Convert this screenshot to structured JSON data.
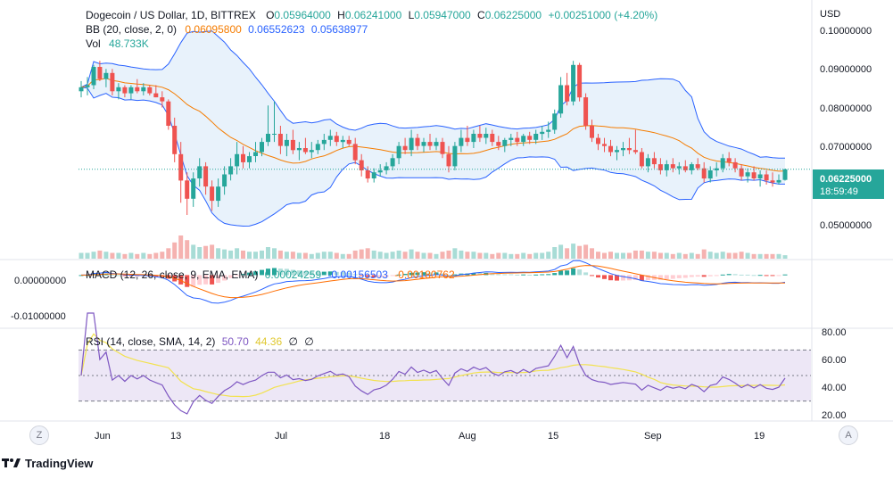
{
  "colors": {
    "up": "#26a69a",
    "down": "#ef5350",
    "vol_up": "#a8dcd6",
    "vol_down": "#f5b2b0",
    "bb_basis": "#f57c00",
    "bb_band": "#2962ff",
    "bb_fill": "#e8f2fb",
    "macd_line": "#2962ff",
    "signal_line": "#ff6d00",
    "rsi_line": "#7e57c2",
    "rsi_ma": "#f2e24f",
    "rsi_band": "#ede7f6",
    "price_label_bg": "#26a69a",
    "text_dark": "#131722",
    "text_up": "#26a69a",
    "text_orange": "#f57c00",
    "text_blue": "#2962ff"
  },
  "legend": {
    "symbol_label": "Dogecoin / US Dollar, 1D, BITTREX",
    "o_key": "O",
    "o_val": "0.05964000",
    "h_key": "H",
    "h_val": "0.06241000",
    "l_key": "L",
    "l_val": "0.05947000",
    "c_key": "C",
    "c_val": "0.06225000",
    "change": "+0.00251000 (+4.20%)",
    "bb_label": "BB (20, close, 2, 0)",
    "bb_basis": "0.06095800",
    "bb_upper": "0.06552623",
    "bb_lower": "0.05638977",
    "vol_label": "Vol",
    "vol_value": "48.733K",
    "macd_label": "MACD (12, 26, close, 9, EMA, EMA)",
    "macd_hist": "0.00024259",
    "macd_line": "-0.00156503",
    "macd_signal": "-0.00180762",
    "rsi_label": "RSI (14, close, SMA, 14, 2)",
    "rsi_value": "50.70",
    "rsi_ma": "44.36",
    "rsi_x1": "∅",
    "rsi_x2": "∅"
  },
  "price_axis": {
    "currency": "USD",
    "ticks": [
      "0.10000000",
      "0.09000000",
      "0.08000000",
      "0.07000000",
      "0.05000000"
    ],
    "last_price": "0.06225000",
    "countdown": "18:59:49"
  },
  "macd_axis": {
    "ticks": [
      "0.00000000",
      "-0.01000000"
    ]
  },
  "rsi_axis": {
    "ticks": [
      "80.00",
      "60.00",
      "40.00",
      "20.00"
    ]
  },
  "time_axis": {
    "labels": [
      "Jun",
      "13",
      "Jul",
      "18",
      "Aug",
      "15",
      "Sep",
      "19"
    ]
  },
  "buttons": {
    "zoom": "Z",
    "auto": "A"
  },
  "branding": {
    "name": "TradingView"
  },
  "chart_data": {
    "type": "candlestick",
    "title": "Dogecoin / US Dollar, 1D, BITTREX",
    "y_range": [
      0.04,
      0.104
    ],
    "candles": [
      {
        "o": 0.0815,
        "h": 0.084,
        "l": 0.08,
        "c": 0.0825
      },
      {
        "o": 0.0825,
        "h": 0.085,
        "l": 0.0805,
        "c": 0.083
      },
      {
        "o": 0.083,
        "h": 0.088,
        "l": 0.082,
        "c": 0.0875
      },
      {
        "o": 0.0875,
        "h": 0.089,
        "l": 0.084,
        "c": 0.0845
      },
      {
        "o": 0.0845,
        "h": 0.087,
        "l": 0.0825,
        "c": 0.086
      },
      {
        "o": 0.086,
        "h": 0.087,
        "l": 0.0805,
        "c": 0.0815
      },
      {
        "o": 0.0815,
        "h": 0.0835,
        "l": 0.0795,
        "c": 0.0825
      },
      {
        "o": 0.0825,
        "h": 0.083,
        "l": 0.08,
        "c": 0.081
      },
      {
        "o": 0.081,
        "h": 0.083,
        "l": 0.0795,
        "c": 0.0825
      },
      {
        "o": 0.0825,
        "h": 0.0845,
        "l": 0.081,
        "c": 0.0815
      },
      {
        "o": 0.0815,
        "h": 0.0835,
        "l": 0.0805,
        "c": 0.0825
      },
      {
        "o": 0.0825,
        "h": 0.083,
        "l": 0.0805,
        "c": 0.081
      },
      {
        "o": 0.081,
        "h": 0.083,
        "l": 0.08,
        "c": 0.08
      },
      {
        "o": 0.08,
        "h": 0.0815,
        "l": 0.0775,
        "c": 0.079
      },
      {
        "o": 0.079,
        "h": 0.0795,
        "l": 0.072,
        "c": 0.073
      },
      {
        "o": 0.073,
        "h": 0.075,
        "l": 0.064,
        "c": 0.066
      },
      {
        "o": 0.066,
        "h": 0.069,
        "l": 0.054,
        "c": 0.0595
      },
      {
        "o": 0.0595,
        "h": 0.0615,
        "l": 0.051,
        "c": 0.055
      },
      {
        "o": 0.055,
        "h": 0.0615,
        "l": 0.053,
        "c": 0.06
      },
      {
        "o": 0.06,
        "h": 0.065,
        "l": 0.058,
        "c": 0.063
      },
      {
        "o": 0.063,
        "h": 0.064,
        "l": 0.056,
        "c": 0.058
      },
      {
        "o": 0.058,
        "h": 0.0595,
        "l": 0.052,
        "c": 0.0545
      },
      {
        "o": 0.0545,
        "h": 0.06,
        "l": 0.053,
        "c": 0.058
      },
      {
        "o": 0.058,
        "h": 0.063,
        "l": 0.056,
        "c": 0.061
      },
      {
        "o": 0.061,
        "h": 0.065,
        "l": 0.0595,
        "c": 0.063
      },
      {
        "o": 0.063,
        "h": 0.069,
        "l": 0.061,
        "c": 0.066
      },
      {
        "o": 0.066,
        "h": 0.068,
        "l": 0.0625,
        "c": 0.064
      },
      {
        "o": 0.064,
        "h": 0.0665,
        "l": 0.0625,
        "c": 0.0655
      },
      {
        "o": 0.0655,
        "h": 0.069,
        "l": 0.064,
        "c": 0.0665
      },
      {
        "o": 0.0665,
        "h": 0.07,
        "l": 0.0655,
        "c": 0.069
      },
      {
        "o": 0.069,
        "h": 0.078,
        "l": 0.068,
        "c": 0.071
      },
      {
        "o": 0.071,
        "h": 0.079,
        "l": 0.069,
        "c": 0.071
      },
      {
        "o": 0.071,
        "h": 0.073,
        "l": 0.066,
        "c": 0.068
      },
      {
        "o": 0.068,
        "h": 0.071,
        "l": 0.0655,
        "c": 0.0695
      },
      {
        "o": 0.0695,
        "h": 0.072,
        "l": 0.066,
        "c": 0.067
      },
      {
        "o": 0.067,
        "h": 0.069,
        "l": 0.0645,
        "c": 0.0675
      },
      {
        "o": 0.0675,
        "h": 0.07,
        "l": 0.066,
        "c": 0.0665
      },
      {
        "o": 0.0665,
        "h": 0.069,
        "l": 0.065,
        "c": 0.067
      },
      {
        "o": 0.067,
        "h": 0.0695,
        "l": 0.066,
        "c": 0.0685
      },
      {
        "o": 0.0685,
        "h": 0.071,
        "l": 0.067,
        "c": 0.0695
      },
      {
        "o": 0.0695,
        "h": 0.072,
        "l": 0.068,
        "c": 0.0705
      },
      {
        "o": 0.0705,
        "h": 0.0715,
        "l": 0.068,
        "c": 0.069
      },
      {
        "o": 0.069,
        "h": 0.0705,
        "l": 0.0675,
        "c": 0.0695
      },
      {
        "o": 0.0695,
        "h": 0.0705,
        "l": 0.068,
        "c": 0.0685
      },
      {
        "o": 0.0685,
        "h": 0.07,
        "l": 0.0635,
        "c": 0.0645
      },
      {
        "o": 0.0645,
        "h": 0.066,
        "l": 0.0605,
        "c": 0.062
      },
      {
        "o": 0.062,
        "h": 0.063,
        "l": 0.059,
        "c": 0.06
      },
      {
        "o": 0.06,
        "h": 0.0625,
        "l": 0.059,
        "c": 0.0615
      },
      {
        "o": 0.0615,
        "h": 0.0635,
        "l": 0.0605,
        "c": 0.062
      },
      {
        "o": 0.062,
        "h": 0.064,
        "l": 0.061,
        "c": 0.063
      },
      {
        "o": 0.063,
        "h": 0.066,
        "l": 0.062,
        "c": 0.065
      },
      {
        "o": 0.065,
        "h": 0.069,
        "l": 0.0635,
        "c": 0.068
      },
      {
        "o": 0.068,
        "h": 0.07,
        "l": 0.066,
        "c": 0.067
      },
      {
        "o": 0.067,
        "h": 0.072,
        "l": 0.0655,
        "c": 0.07
      },
      {
        "o": 0.07,
        "h": 0.071,
        "l": 0.067,
        "c": 0.068
      },
      {
        "o": 0.068,
        "h": 0.07,
        "l": 0.0665,
        "c": 0.069
      },
      {
        "o": 0.069,
        "h": 0.071,
        "l": 0.067,
        "c": 0.068
      },
      {
        "o": 0.068,
        "h": 0.07,
        "l": 0.067,
        "c": 0.069
      },
      {
        "o": 0.069,
        "h": 0.07,
        "l": 0.065,
        "c": 0.066
      },
      {
        "o": 0.066,
        "h": 0.068,
        "l": 0.0615,
        "c": 0.063
      },
      {
        "o": 0.063,
        "h": 0.069,
        "l": 0.062,
        "c": 0.068
      },
      {
        "o": 0.068,
        "h": 0.072,
        "l": 0.0665,
        "c": 0.07
      },
      {
        "o": 0.07,
        "h": 0.073,
        "l": 0.068,
        "c": 0.069
      },
      {
        "o": 0.069,
        "h": 0.072,
        "l": 0.0675,
        "c": 0.071
      },
      {
        "o": 0.071,
        "h": 0.073,
        "l": 0.069,
        "c": 0.07
      },
      {
        "o": 0.07,
        "h": 0.0725,
        "l": 0.0685,
        "c": 0.071
      },
      {
        "o": 0.071,
        "h": 0.072,
        "l": 0.068,
        "c": 0.069
      },
      {
        "o": 0.069,
        "h": 0.0705,
        "l": 0.067,
        "c": 0.068
      },
      {
        "o": 0.068,
        "h": 0.07,
        "l": 0.0665,
        "c": 0.0695
      },
      {
        "o": 0.0695,
        "h": 0.071,
        "l": 0.068,
        "c": 0.07
      },
      {
        "o": 0.07,
        "h": 0.0715,
        "l": 0.068,
        "c": 0.069
      },
      {
        "o": 0.069,
        "h": 0.071,
        "l": 0.068,
        "c": 0.0705
      },
      {
        "o": 0.0705,
        "h": 0.0715,
        "l": 0.0685,
        "c": 0.0695
      },
      {
        "o": 0.0695,
        "h": 0.072,
        "l": 0.0685,
        "c": 0.071
      },
      {
        "o": 0.071,
        "h": 0.073,
        "l": 0.0695,
        "c": 0.0715
      },
      {
        "o": 0.0715,
        "h": 0.074,
        "l": 0.07,
        "c": 0.072
      },
      {
        "o": 0.072,
        "h": 0.077,
        "l": 0.071,
        "c": 0.076
      },
      {
        "o": 0.076,
        "h": 0.085,
        "l": 0.075,
        "c": 0.083
      },
      {
        "o": 0.083,
        "h": 0.086,
        "l": 0.078,
        "c": 0.079
      },
      {
        "o": 0.079,
        "h": 0.089,
        "l": 0.078,
        "c": 0.088
      },
      {
        "o": 0.088,
        "h": 0.0885,
        "l": 0.079,
        "c": 0.08
      },
      {
        "o": 0.08,
        "h": 0.081,
        "l": 0.072,
        "c": 0.073
      },
      {
        "o": 0.073,
        "h": 0.0745,
        "l": 0.069,
        "c": 0.07
      },
      {
        "o": 0.07,
        "h": 0.071,
        "l": 0.067,
        "c": 0.0685
      },
      {
        "o": 0.0685,
        "h": 0.07,
        "l": 0.0665,
        "c": 0.068
      },
      {
        "o": 0.068,
        "h": 0.0695,
        "l": 0.0655,
        "c": 0.0665
      },
      {
        "o": 0.0665,
        "h": 0.068,
        "l": 0.0645,
        "c": 0.067
      },
      {
        "o": 0.067,
        "h": 0.069,
        "l": 0.0655,
        "c": 0.0675
      },
      {
        "o": 0.0675,
        "h": 0.07,
        "l": 0.066,
        "c": 0.067
      },
      {
        "o": 0.067,
        "h": 0.072,
        "l": 0.066,
        "c": 0.0665
      },
      {
        "o": 0.0665,
        "h": 0.0675,
        "l": 0.0625,
        "c": 0.063
      },
      {
        "o": 0.063,
        "h": 0.066,
        "l": 0.0615,
        "c": 0.065
      },
      {
        "o": 0.065,
        "h": 0.0665,
        "l": 0.0625,
        "c": 0.0635
      },
      {
        "o": 0.0635,
        "h": 0.065,
        "l": 0.061,
        "c": 0.062
      },
      {
        "o": 0.062,
        "h": 0.0645,
        "l": 0.0605,
        "c": 0.0635
      },
      {
        "o": 0.0635,
        "h": 0.065,
        "l": 0.0615,
        "c": 0.0625
      },
      {
        "o": 0.0625,
        "h": 0.064,
        "l": 0.061,
        "c": 0.063
      },
      {
        "o": 0.063,
        "h": 0.0645,
        "l": 0.0615,
        "c": 0.062
      },
      {
        "o": 0.062,
        "h": 0.064,
        "l": 0.061,
        "c": 0.0635
      },
      {
        "o": 0.0635,
        "h": 0.065,
        "l": 0.062,
        "c": 0.0625
      },
      {
        "o": 0.0625,
        "h": 0.064,
        "l": 0.059,
        "c": 0.06
      },
      {
        "o": 0.06,
        "h": 0.063,
        "l": 0.059,
        "c": 0.062
      },
      {
        "o": 0.062,
        "h": 0.064,
        "l": 0.0605,
        "c": 0.0625
      },
      {
        "o": 0.0625,
        "h": 0.066,
        "l": 0.0615,
        "c": 0.065
      },
      {
        "o": 0.065,
        "h": 0.0665,
        "l": 0.063,
        "c": 0.064
      },
      {
        "o": 0.064,
        "h": 0.065,
        "l": 0.0615,
        "c": 0.0625
      },
      {
        "o": 0.0625,
        "h": 0.0635,
        "l": 0.0595,
        "c": 0.0605
      },
      {
        "o": 0.0605,
        "h": 0.0625,
        "l": 0.059,
        "c": 0.0615
      },
      {
        "o": 0.0615,
        "h": 0.063,
        "l": 0.0595,
        "c": 0.06
      },
      {
        "o": 0.06,
        "h": 0.062,
        "l": 0.058,
        "c": 0.061
      },
      {
        "o": 0.061,
        "h": 0.062,
        "l": 0.0585,
        "c": 0.0595
      },
      {
        "o": 0.0595,
        "h": 0.0615,
        "l": 0.058,
        "c": 0.059
      },
      {
        "o": 0.059,
        "h": 0.061,
        "l": 0.0585,
        "c": 0.0596
      },
      {
        "o": 0.05964,
        "h": 0.06241,
        "l": 0.05947,
        "c": 0.06225
      }
    ],
    "volume_relative": [
      0.25,
      0.25,
      0.3,
      0.35,
      0.3,
      0.25,
      0.25,
      0.2,
      0.25,
      0.2,
      0.25,
      0.2,
      0.25,
      0.3,
      0.45,
      0.7,
      1.0,
      0.8,
      0.6,
      0.5,
      0.55,
      0.6,
      0.45,
      0.4,
      0.35,
      0.45,
      0.35,
      0.3,
      0.3,
      0.35,
      0.5,
      0.45,
      0.35,
      0.3,
      0.3,
      0.25,
      0.25,
      0.2,
      0.25,
      0.3,
      0.3,
      0.25,
      0.2,
      0.2,
      0.35,
      0.4,
      0.45,
      0.35,
      0.3,
      0.25,
      0.3,
      0.35,
      0.3,
      0.4,
      0.3,
      0.25,
      0.25,
      0.2,
      0.3,
      0.35,
      0.45,
      0.35,
      0.3,
      0.3,
      0.25,
      0.25,
      0.2,
      0.25,
      0.25,
      0.2,
      0.2,
      0.25,
      0.2,
      0.25,
      0.25,
      0.3,
      0.5,
      0.6,
      0.45,
      0.65,
      0.55,
      0.6,
      0.45,
      0.3,
      0.25,
      0.3,
      0.25,
      0.25,
      0.25,
      0.35,
      0.35,
      0.3,
      0.3,
      0.25,
      0.25,
      0.2,
      0.25,
      0.2,
      0.25,
      0.2,
      0.4,
      0.3,
      0.25,
      0.3,
      0.25,
      0.25,
      0.3,
      0.25,
      0.2,
      0.2,
      0.2,
      0.2,
      0.2,
      0.15
    ],
    "bb_basis_end": 0.060958,
    "bb_upper_end": 0.06552623,
    "bb_lower_end": 0.05638977,
    "macd_range": [
      -0.0125,
      0.0027
    ],
    "rsi_range": [
      15,
      85
    ],
    "rsi_bands": [
      30,
      70
    ]
  }
}
